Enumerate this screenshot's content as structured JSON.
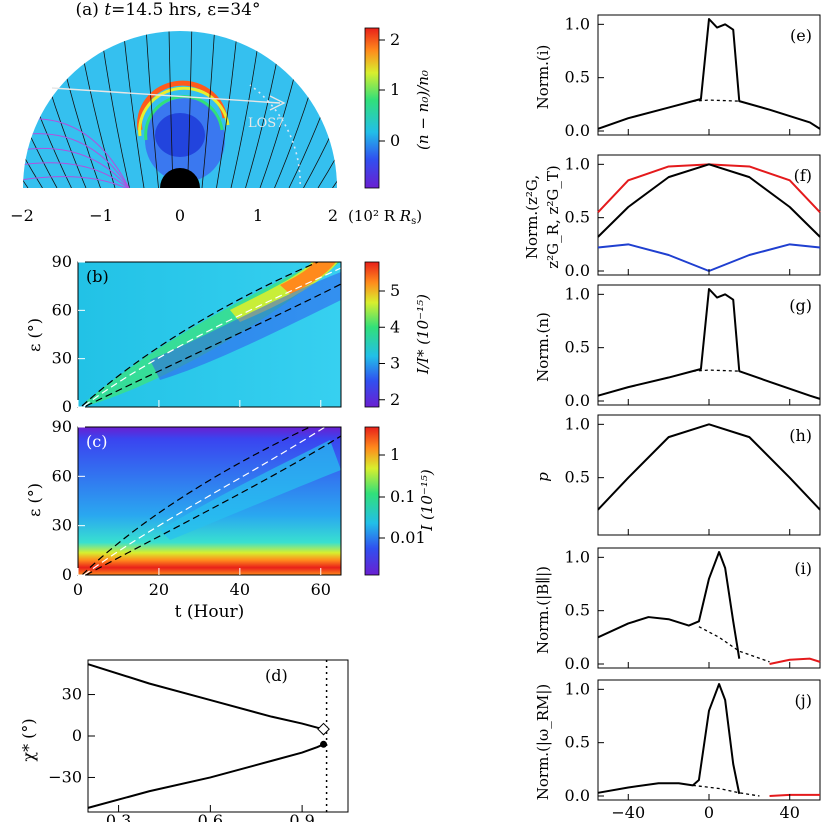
{
  "colors": {
    "black": "#000000",
    "red": "#e41a1c",
    "blue": "#1f3fd0",
    "cme_bg": "#35c0ef",
    "cbar_stops": [
      "#6a1fd1",
      "#3050f0",
      "#22bfe8",
      "#31e07a",
      "#d8ef2e",
      "#ff8a1c",
      "#e8201a"
    ]
  },
  "panel_a": {
    "label": "(a)",
    "title_parts": [
      "t",
      "=14.5 hrs, ",
      "ε",
      "=34°"
    ],
    "x_ticks": [
      "−2",
      "−1",
      "0",
      "1",
      "2"
    ],
    "x_unit": "(10² R",
    "x_unit_sub": "s",
    "x_unit_close": ")",
    "los_label": "LOS7",
    "cbar_label": "(n − n₀)/n₀",
    "cbar_ticks": [
      "2",
      "1",
      "0"
    ]
  },
  "panel_b": {
    "label": "(b)",
    "ylabel": "ε (°)",
    "cbar_label": "I/I* (10⁻¹⁵)",
    "cbar_ticks": [
      "5",
      "4",
      "3",
      "2"
    ]
  },
  "panel_c": {
    "label": "(c)",
    "ylabel": "ε (°)",
    "cbar_label": "I (10⁻¹⁵)",
    "cbar_ticks": [
      "1",
      "0.1",
      "0.01"
    ]
  },
  "panel_d": {
    "label": "(d)",
    "ylabel": "χ* (°)"
  },
  "panels_right": {
    "e": {
      "label": "(e)",
      "ylabel": "Norm.(i)"
    },
    "f": {
      "label": "(f)",
      "ylabel_line1": "Norm.(z²G,",
      "ylabel_line2": "z²G_R, z²G_T)"
    },
    "g": {
      "label": "(g)",
      "ylabel": "Norm.(n)"
    },
    "h": {
      "label": "(h)",
      "ylabel": "p"
    },
    "i": {
      "label": "(i)",
      "ylabel": "Norm.(|B∥|)"
    },
    "j": {
      "label": "(j)",
      "ylabel": "Norm.(|ω_RM|)"
    }
  },
  "chart_data": [
    {
      "id": "b",
      "type": "heatmap",
      "ylabel": "ε (°)",
      "xlim": [
        0,
        65
      ],
      "ylim": [
        0,
        90
      ],
      "y_ticks": [
        0,
        30,
        60,
        90
      ],
      "x_ticks": [
        0,
        20,
        40,
        60
      ],
      "cbar_range": [
        1.8,
        5.8
      ],
      "cbar_ticks": [
        2,
        3,
        4,
        5
      ]
    },
    {
      "id": "c",
      "type": "heatmap",
      "xlabel": "t (Hour)",
      "ylabel": "ε (°)",
      "xlim": [
        0,
        65
      ],
      "ylim": [
        0,
        90
      ],
      "x_ticks": [
        0,
        20,
        40,
        60
      ],
      "y_ticks": [
        0,
        30,
        60,
        90
      ],
      "cbar_scale": "log",
      "cbar_ticks": [
        "1",
        "0.1",
        "0.01"
      ]
    },
    {
      "id": "d",
      "type": "line",
      "ylabel": "χ* (°)",
      "x_ticks": [
        0.3,
        0.6,
        0.9
      ],
      "y_ticks": [
        30,
        0,
        -30
      ],
      "xlim": [
        0.2,
        1.05
      ],
      "ylim": [
        -55,
        55
      ],
      "vline_x": 0.98,
      "series": [
        {
          "x": [
            0.2,
            0.4,
            0.6,
            0.8,
            0.9,
            0.95,
            0.97
          ],
          "y": [
            52,
            38,
            26,
            14,
            9,
            6,
            5
          ]
        },
        {
          "x": [
            0.2,
            0.4,
            0.6,
            0.8,
            0.9,
            0.95,
            0.97
          ],
          "y": [
            -52,
            -40,
            -30,
            -18,
            -12,
            -8,
            -6
          ]
        }
      ]
    },
    {
      "id": "e",
      "type": "line",
      "ylabel": "Norm.(i)",
      "ylim": [
        0,
        1.05
      ],
      "y_ticks": [
        0.0,
        0.5,
        1.0
      ],
      "series": [
        {
          "x": [
            -55,
            -40,
            -20,
            -8,
            -4,
            0,
            4,
            8,
            12,
            15,
            30,
            50,
            55
          ],
          "y": [
            0.02,
            0.12,
            0.22,
            0.28,
            0.3,
            1.05,
            0.97,
            1.0,
            0.95,
            0.28,
            0.2,
            0.08,
            0.02
          ]
        },
        {
          "x": [
            -8,
            0,
            15
          ],
          "y": [
            0.28,
            0.29,
            0.28
          ],
          "dash": true
        }
      ]
    },
    {
      "id": "f",
      "type": "line",
      "ylim": [
        0,
        1.05
      ],
      "y_ticks": [
        0.0,
        0.5,
        1.0
      ],
      "series": [
        {
          "color": "red",
          "x": [
            -55,
            -40,
            -20,
            0,
            20,
            40,
            55
          ],
          "y": [
            0.55,
            0.85,
            0.98,
            1.0,
            0.98,
            0.85,
            0.55
          ]
        },
        {
          "color": "black",
          "x": [
            -55,
            -40,
            -20,
            0,
            20,
            40,
            55
          ],
          "y": [
            0.32,
            0.6,
            0.88,
            1.0,
            0.88,
            0.6,
            0.32
          ]
        },
        {
          "color": "blue",
          "x": [
            -55,
            -40,
            -20,
            0,
            20,
            40,
            55
          ],
          "y": [
            0.22,
            0.25,
            0.15,
            0.0,
            0.15,
            0.25,
            0.22
          ]
        }
      ]
    },
    {
      "id": "g",
      "type": "line",
      "ylabel": "Norm.(n)",
      "ylim": [
        0,
        1.05
      ],
      "y_ticks": [
        0.0,
        0.5,
        1.0
      ],
      "series": [
        {
          "x": [
            -55,
            -40,
            -20,
            -8,
            -4,
            0,
            4,
            8,
            12,
            15,
            30,
            50,
            55
          ],
          "y": [
            0.05,
            0.13,
            0.22,
            0.28,
            0.3,
            1.05,
            0.97,
            1.0,
            0.95,
            0.28,
            0.18,
            0.05,
            0.02
          ]
        },
        {
          "x": [
            -8,
            0,
            15
          ],
          "y": [
            0.28,
            0.29,
            0.28
          ],
          "dash": true
        }
      ]
    },
    {
      "id": "h",
      "type": "line",
      "ylabel": "p",
      "ylim": [
        0,
        1.05
      ],
      "y_ticks": [
        0.5,
        1.0
      ],
      "series": [
        {
          "x": [
            -55,
            -40,
            -20,
            0,
            20,
            40,
            55
          ],
          "y": [
            0.2,
            0.5,
            0.88,
            1.0,
            0.88,
            0.5,
            0.2
          ]
        }
      ]
    },
    {
      "id": "i",
      "type": "line",
      "ylabel": "Norm.(|B∥|)",
      "ylim": [
        0,
        1.05
      ],
      "y_ticks": [
        0.0,
        0.5,
        1.0
      ],
      "series": [
        {
          "x": [
            -55,
            -40,
            -30,
            -20,
            -10,
            -5,
            0,
            5,
            8,
            12,
            15
          ],
          "y": [
            0.25,
            0.38,
            0.44,
            0.42,
            0.36,
            0.4,
            0.8,
            1.05,
            0.9,
            0.4,
            0.05
          ]
        },
        {
          "x": [
            -5,
            5,
            15,
            30
          ],
          "y": [
            0.35,
            0.25,
            0.12,
            0.02
          ],
          "dash": true
        },
        {
          "color": "red",
          "x": [
            30,
            40,
            50,
            55
          ],
          "y": [
            0.0,
            0.04,
            0.05,
            0.02
          ]
        }
      ]
    },
    {
      "id": "j",
      "type": "line",
      "ylabel": "Norm.(|ω_RM|)",
      "ylim": [
        0,
        1.05
      ],
      "y_ticks": [
        0.0,
        0.5,
        1.0
      ],
      "x_ticks": [
        -40,
        0,
        40
      ],
      "series": [
        {
          "x": [
            -55,
            -40,
            -25,
            -15,
            -8,
            -5,
            0,
            5,
            8,
            12,
            15
          ],
          "y": [
            0.03,
            0.08,
            0.12,
            0.12,
            0.1,
            0.15,
            0.8,
            1.05,
            0.9,
            0.3,
            0.02
          ]
        },
        {
          "x": [
            -8,
            5,
            15,
            25
          ],
          "y": [
            0.1,
            0.07,
            0.03,
            0.0
          ],
          "dash": true
        },
        {
          "color": "red",
          "x": [
            30,
            40,
            55
          ],
          "y": [
            0.0,
            0.01,
            0.01
          ]
        }
      ]
    }
  ]
}
